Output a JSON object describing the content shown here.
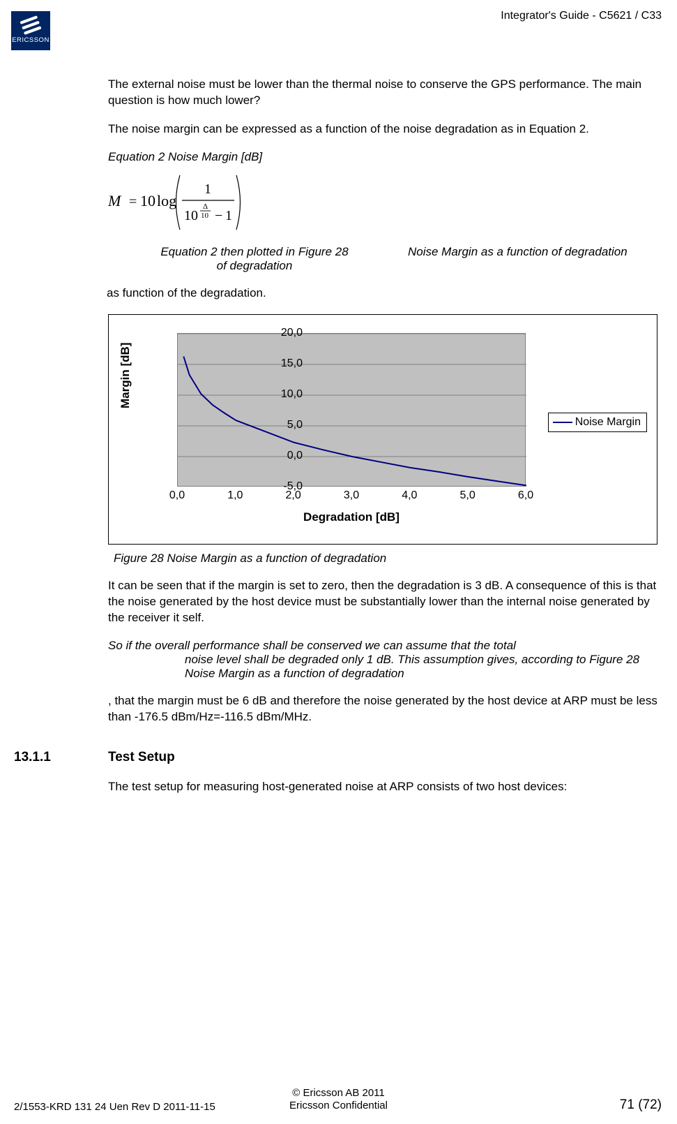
{
  "header": {
    "doc_title": "Integrator's Guide - C5621 / C33",
    "logo_text": "ERICSSON"
  },
  "body": {
    "para1": "The external noise must be lower than the thermal noise to conserve the GPS performance. The main question is how much lower?",
    "para2": "The noise margin can be expressed as a function of the noise degradation as in Equation 2.",
    "eq2_label": "Equation 2  Noise Margin [dB]",
    "eq2_caption_left": "Equation 2 then plotted in Figure 28",
    "eq2_caption_right": "Noise Margin as a function of degradation",
    "para3": "as function of the degradation.",
    "fig28_caption": "Figure 28    Noise Margin as a function of degradation",
    "para4": "It can be seen that if the margin is set to zero, then the degradation is 3 dB. A consequence of this is that the noise generated by the host device must be substantially lower than the internal noise generated by the receiver it self.",
    "para5_line1": "So if the overall performance shall be conserved we can assume that the total",
    "para5_rest": "noise level shall be degraded only 1 dB. This assumption gives, according to Figure 28   Noise Margin as a function of degradation",
    "para6": ", that the margin must be 6 dB and therefore the noise generated by the host device at ARP must be less than -176.5 dBm/Hz=-116.5 dBm/MHz.",
    "section_num": "13.1.1",
    "section_title": "Test Setup",
    "para7": "The test setup for measuring host-generated noise at ARP consists of two host devices:"
  },
  "equation": {
    "M": "M",
    "eq": "=",
    "coef": "10",
    "log": "log",
    "numerator": "1",
    "denom_base": "10",
    "denom_exp_num": "Δ",
    "denom_exp_den": "10",
    "minus": "−",
    "one": "1"
  },
  "chart": {
    "type": "line",
    "title": "",
    "xlabel": "Degradation [dB]",
    "ylabel": "Margin [dB]",
    "xlim": [
      0.0,
      6.0
    ],
    "ylim": [
      -5.0,
      20.0
    ],
    "xticks": [
      "0,0",
      "1,0",
      "2,0",
      "3,0",
      "4,0",
      "5,0",
      "6,0"
    ],
    "yticks": [
      "-5,0",
      "0,0",
      "5,0",
      "10,0",
      "15,0",
      "20,0"
    ],
    "xtick_vals": [
      0,
      1,
      2,
      3,
      4,
      5,
      6
    ],
    "ytick_vals": [
      -5,
      0,
      5,
      10,
      15,
      20
    ],
    "legend_label": "Noise Margin",
    "line_color": "#000080",
    "plot_bg": "#c0c0c0",
    "grid_color": "#7f7f7f",
    "line_width": 2,
    "series": [
      {
        "x": 0.1,
        "y": 16.3
      },
      {
        "x": 0.2,
        "y": 13.3
      },
      {
        "x": 0.4,
        "y": 10.2
      },
      {
        "x": 0.6,
        "y": 8.4
      },
      {
        "x": 0.8,
        "y": 7.1
      },
      {
        "x": 1.0,
        "y": 5.9
      },
      {
        "x": 1.5,
        "y": 4.1
      },
      {
        "x": 2.0,
        "y": 2.3
      },
      {
        "x": 2.5,
        "y": 1.1
      },
      {
        "x": 3.0,
        "y": 0.0
      },
      {
        "x": 3.5,
        "y": -0.9
      },
      {
        "x": 4.0,
        "y": -1.8
      },
      {
        "x": 4.5,
        "y": -2.5
      },
      {
        "x": 5.0,
        "y": -3.3
      },
      {
        "x": 5.5,
        "y": -4.0
      },
      {
        "x": 6.0,
        "y": -4.7
      }
    ]
  },
  "footer": {
    "left": "2/1553-KRD 131 24 Uen  Rev D    2011-11-15",
    "mid_line1": "© Ericsson AB 2011",
    "mid_line2": "Ericsson Confidential",
    "right": "71 (72)"
  }
}
